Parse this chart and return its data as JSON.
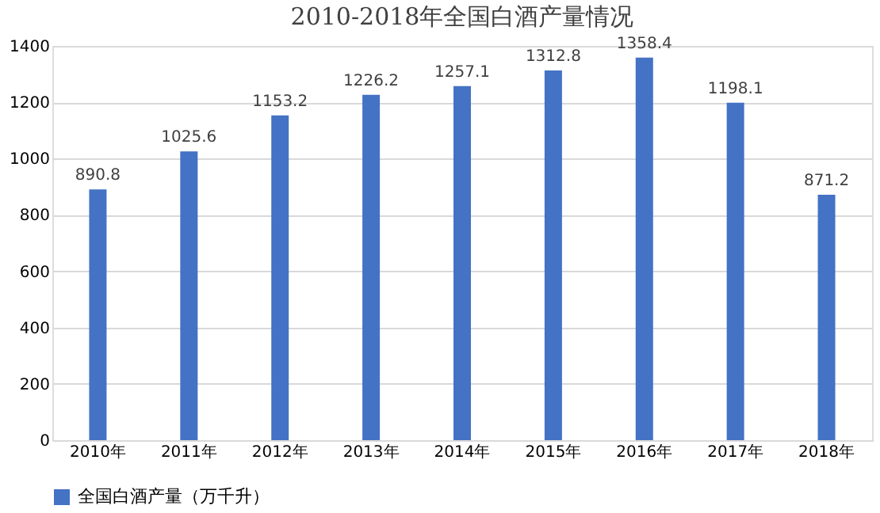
{
  "chart_data": {
    "type": "bar",
    "title": "2010-2018年全国白酒产量情况",
    "categories": [
      "2010年",
      "2011年",
      "2012年",
      "2013年",
      "2014年",
      "2015年",
      "2016年",
      "2017年",
      "2018年"
    ],
    "series": [
      {
        "name": "全国白酒产量（万千升）",
        "color": "#4472c4",
        "values": [
          890.8,
          1025.6,
          1153.2,
          1226.2,
          1257.1,
          1312.8,
          1358.4,
          1198.1,
          871.2
        ]
      }
    ],
    "ylim": [
      0,
      1400
    ],
    "yticks": [
      0,
      200,
      400,
      600,
      800,
      1000,
      1200,
      1400
    ],
    "grid": "y",
    "legend": "bottom",
    "data_labels": true
  }
}
